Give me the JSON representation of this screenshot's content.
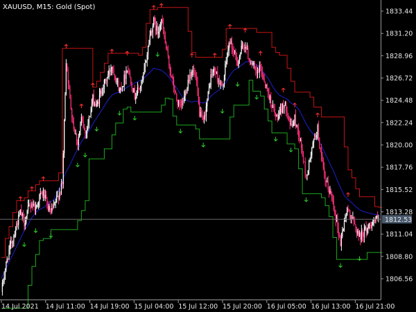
{
  "chart_data": {
    "type": "line",
    "title": "XAUUSD, M15:  Gold (Spot)",
    "symbol": "XAUUSD",
    "timeframe": "M15",
    "instrument": "Gold (Spot)",
    "ylim": [
      1804.8,
      1835.2
    ],
    "y_ticks": [
      "1833.44",
      "1831.20",
      "1828.96",
      "1826.72",
      "1824.48",
      "1822.24",
      "1820.00",
      "1817.76",
      "1815.52",
      "1813.28",
      "1811.04",
      "1808.80",
      "1806.56"
    ],
    "x_ticks": [
      "14 Jul 2021",
      "14 Jul 11:00",
      "14 Jul 19:00",
      "15 Jul 04:00",
      "15 Jul 12:00",
      "15 Jul 20:00",
      "16 Jul 05:00",
      "16 Jul 13:00",
      "16 Jul 21:00"
    ],
    "current_price": "1812.53",
    "current_price_value": 1812.53,
    "colors": {
      "background": "#000000",
      "candle_up": "#ffffff",
      "candle_down": "#ff2f7a",
      "upper_band": "#c81414",
      "lower_band": "#1fa81f",
      "middle_line": "#1a1ab0",
      "arrow_up": "#ff3030",
      "arrow_down": "#30d030",
      "axis": "#9a9a9a",
      "price_tag_bg": "#4a5a6e",
      "price_line": "#6a6a6a"
    },
    "series": [
      {
        "name": "",
        "values": [
          1805.2,
          1807.5,
          1809.4,
          1810.6,
          1812.0,
          1813.2,
          1812.2,
          1813.5,
          1814.2,
          1813.6,
          1814.8,
          1815.2,
          1813.9,
          1813.1,
          1814.0,
          1815.0,
          1816.0,
          1828.5,
          1824.5,
          1821.8,
          1820.2,
          1822.5,
          1821.2,
          1822.6,
          1824.6,
          1823.8,
          1825.2,
          1826.1,
          1827.0,
          1828.0,
          1826.8,
          1825.4,
          1826.3,
          1827.8,
          1826.5,
          1824.9,
          1825.6,
          1826.3,
          1828.6,
          1831.0,
          1832.4,
          1831.3,
          1832.6,
          1830.2,
          1828.1,
          1826.2,
          1824.5,
          1823.6,
          1824.8,
          1826.5,
          1827.6,
          1826.7,
          1823.2,
          1822.2,
          1824.4,
          1826.9,
          1827.6,
          1826.5,
          1825.6,
          1828.4,
          1830.5,
          1829.2,
          1828.3,
          1829.6,
          1830.1,
          1828.6,
          1828.1,
          1827.0,
          1827.8,
          1826.5,
          1825.2,
          1824.0,
          1822.8,
          1822.9,
          1824.1,
          1823.6,
          1821.7,
          1822.6,
          1821.2,
          1819.2,
          1816.7,
          1818.6,
          1820.4,
          1821.6,
          1818.6,
          1816.3,
          1815.5,
          1814.4,
          1812.3,
          1810.1,
          1812.4,
          1813.6,
          1812.6,
          1811.7,
          1810.8,
          1811.2,
          1811.6,
          1812.1,
          1812.5,
          1812.53
        ]
      },
      {
        "name": "",
        "values": [
          1806.6,
          1807.4,
          1808.2,
          1809.0,
          1809.8,
          1810.6,
          1811.4,
          1812.0,
          1812.7,
          1813.2,
          1813.5,
          1813.7,
          1814.0,
          1814.3,
          1814.6,
          1815.4,
          1816.4,
          1817.3,
          1818.0,
          1818.8,
          1819.6,
          1820.3,
          1820.9,
          1821.4,
          1822.1,
          1822.7,
          1823.3,
          1823.9,
          1824.5,
          1825.0,
          1825.2,
          1825.3,
          1825.5,
          1825.8,
          1826.0,
          1826.2,
          1826.4,
          1826.6,
          1826.9,
          1827.3,
          1827.7,
          1827.6,
          1827.5,
          1827.2,
          1826.8,
          1826.2,
          1825.7,
          1825.1,
          1824.6,
          1824.4,
          1824.3,
          1824.4,
          1824.3,
          1824.2,
          1824.4,
          1824.9,
          1825.2,
          1825.5,
          1825.8,
          1826.3,
          1827.0,
          1827.5,
          1827.7,
          1828.0,
          1828.3,
          1828.4,
          1828.3,
          1828.0,
          1827.7,
          1827.2,
          1826.7,
          1826.0,
          1825.4,
          1825.0,
          1824.8,
          1824.6,
          1824.2,
          1824.0,
          1823.6,
          1822.9,
          1822.1,
          1821.5,
          1821.0,
          1820.6,
          1819.9,
          1819.1,
          1818.3,
          1817.5,
          1816.6,
          1815.7,
          1814.9,
          1814.5,
          1814.2,
          1813.8,
          1813.5,
          1813.3,
          1813.2,
          1813.1,
          1813.0,
          1813.0
        ]
      }
    ]
  }
}
